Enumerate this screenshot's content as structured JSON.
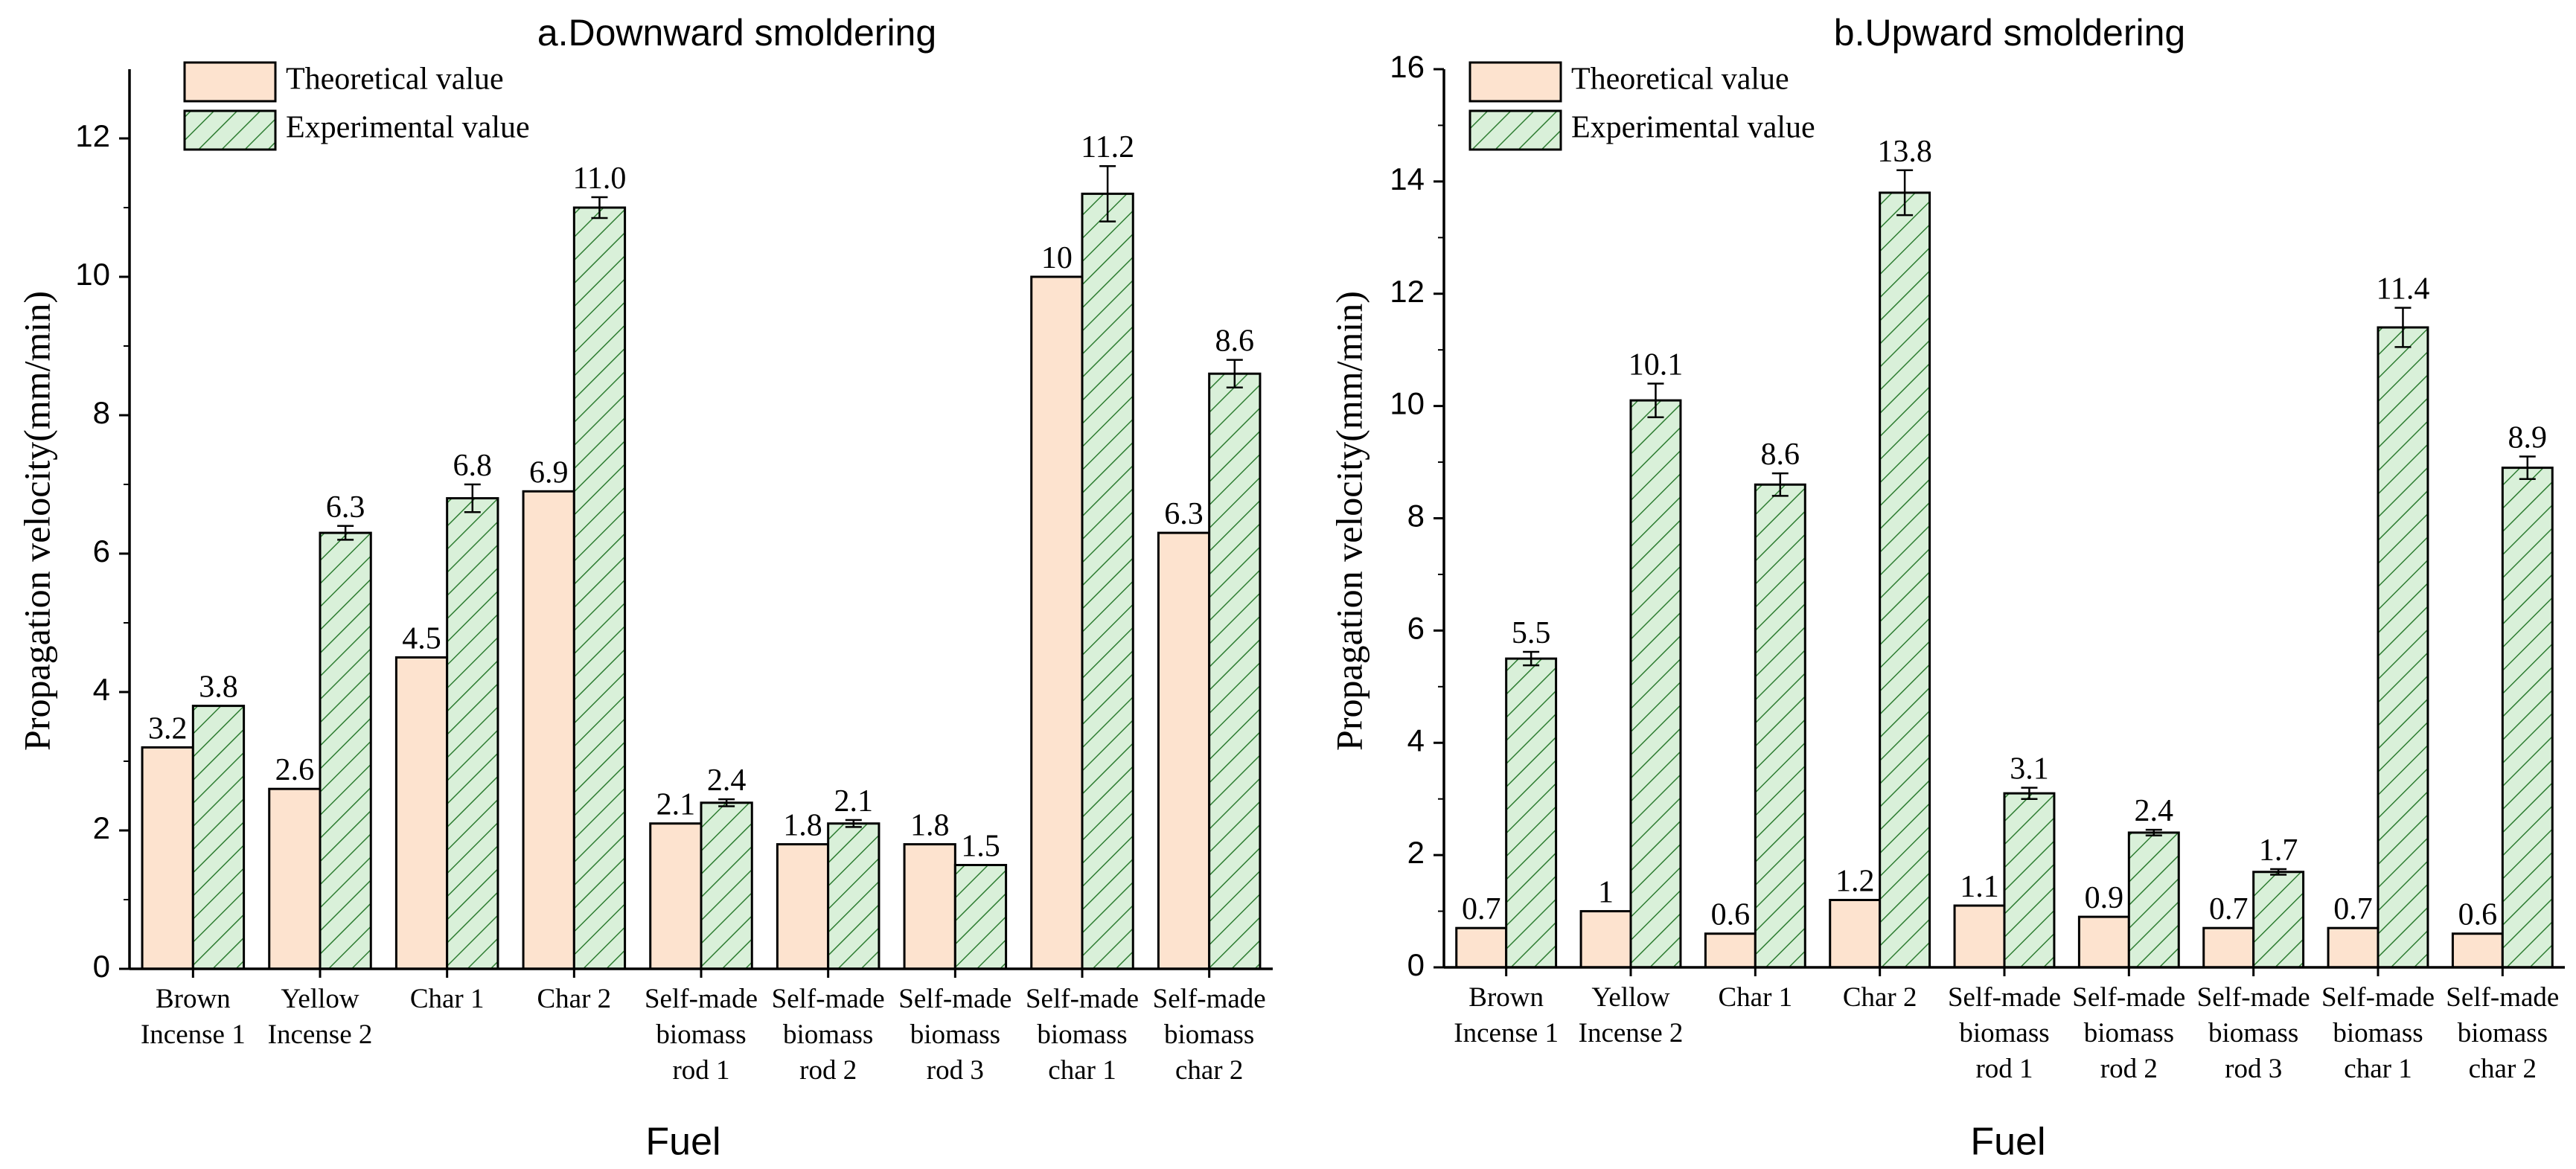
{
  "chart_data": [
    {
      "type": "bar",
      "title": "a.Downward smoldering",
      "xlabel": "Fuel",
      "ylabel": "Propagation velocity(mm/min)",
      "ylim": [
        0,
        13
      ],
      "yticks": [
        0,
        2,
        4,
        6,
        8,
        10,
        12
      ],
      "categories": [
        [
          "Brown",
          "Incense 1"
        ],
        [
          "Yellow",
          "Incense 2"
        ],
        [
          "Char 1"
        ],
        [
          "Char 2"
        ],
        [
          "Self-made",
          "biomass",
          "rod 1"
        ],
        [
          "Self-made",
          "biomass",
          "rod 2"
        ],
        [
          "Self-made",
          "biomass",
          "rod 3"
        ],
        [
          "Self-made",
          "biomass",
          "char 1"
        ],
        [
          "Self-made",
          "biomass",
          "char 2"
        ]
      ],
      "series": [
        {
          "name": "Theoretical value",
          "values": [
            3.2,
            2.6,
            4.5,
            6.9,
            2.1,
            1.8,
            1.8,
            10,
            6.3
          ],
          "labels": [
            "3.2",
            "2.6",
            "4.5",
            "6.9",
            "2.1",
            "1.8",
            "1.8",
            "10",
            "6.3"
          ],
          "errors": [
            0,
            0,
            0,
            0,
            0,
            0,
            0,
            0,
            0
          ]
        },
        {
          "name": "Experimental value",
          "values": [
            3.8,
            6.3,
            6.8,
            11.0,
            2.4,
            2.1,
            1.5,
            11.2,
            8.6
          ],
          "labels": [
            "3.8",
            "6.3",
            "6.8",
            "11.0",
            "2.4",
            "2.1",
            "1.5",
            "11.2",
            "8.6"
          ],
          "errors": [
            0,
            0.1,
            0.2,
            0.15,
            0.05,
            0.05,
            0,
            0.4,
            0.2
          ]
        }
      ],
      "legend": "top-left"
    },
    {
      "type": "bar",
      "title": "b.Upward smoldering",
      "xlabel": "Fuel",
      "ylabel": "Propagation velocity(mm/min)",
      "ylim": [
        0,
        16
      ],
      "yticks": [
        0,
        2,
        4,
        6,
        8,
        10,
        12,
        14,
        16
      ],
      "categories": [
        [
          "Brown",
          "Incense 1"
        ],
        [
          "Yellow",
          "Incense 2"
        ],
        [
          "Char 1"
        ],
        [
          "Char 2"
        ],
        [
          "Self-made",
          "biomass",
          "rod 1"
        ],
        [
          "Self-made",
          "biomass",
          "rod 2"
        ],
        [
          "Self-made",
          "biomass",
          "rod 3"
        ],
        [
          "Self-made",
          "biomass",
          "char 1"
        ],
        [
          "Self-made",
          "biomass",
          "char 2"
        ]
      ],
      "series": [
        {
          "name": "Theoretical value",
          "values": [
            0.7,
            1,
            0.6,
            1.2,
            1.1,
            0.9,
            0.7,
            0.7,
            0.6
          ],
          "labels": [
            "0.7",
            "1",
            "0.6",
            "1.2",
            "1.1",
            "0.9",
            "0.7",
            "0.7",
            "0.6"
          ],
          "errors": [
            0,
            0,
            0,
            0,
            0,
            0,
            0,
            0,
            0
          ]
        },
        {
          "name": "Experimental value",
          "values": [
            5.5,
            10.1,
            8.6,
            13.8,
            3.1,
            2.4,
            1.7,
            11.4,
            8.9
          ],
          "labels": [
            "5.5",
            "10.1",
            "8.6",
            "13.8",
            "3.1",
            "2.4",
            "1.7",
            "11.4",
            "8.9"
          ],
          "errors": [
            0.12,
            0.3,
            0.2,
            0.4,
            0.1,
            0.05,
            0.05,
            0.35,
            0.2
          ]
        }
      ],
      "legend": "top-left"
    }
  ],
  "colors": {
    "theoretical_fill": "#fde3cf",
    "experimental_fill": "#d9f0d9",
    "hatch": "#2e7d32",
    "stroke": "#000000"
  }
}
